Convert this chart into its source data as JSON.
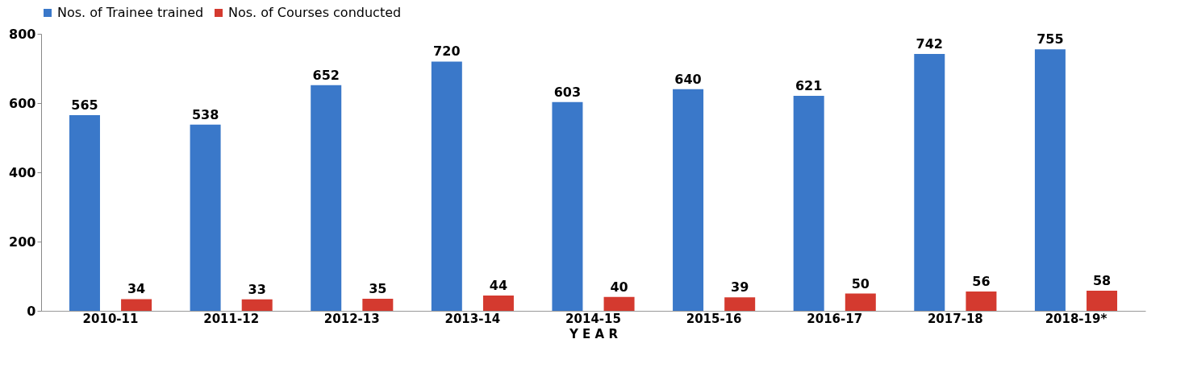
{
  "chart_data": {
    "type": "bar",
    "xlabel": "Y E A R",
    "categories": [
      "2010-11",
      "2011-12",
      "2012-13",
      "2013-14",
      "2014-15",
      "2015-16",
      "2016-17",
      "2017-18",
      "2018-19*"
    ],
    "series": [
      {
        "name": "Nos. of Trainee trained",
        "color": "#3a78c9",
        "values": [
          565,
          538,
          652,
          720,
          603,
          640,
          621,
          742,
          755
        ]
      },
      {
        "name": "Nos. of Courses conducted",
        "color": "#d43a2f",
        "values": [
          34,
          33,
          35,
          44,
          40,
          39,
          50,
          56,
          58
        ]
      }
    ],
    "ylim": [
      0,
      800
    ],
    "yticks": [
      0,
      200,
      400,
      600,
      800
    ],
    "data_labels": true,
    "legend": "top",
    "grid": false
  }
}
